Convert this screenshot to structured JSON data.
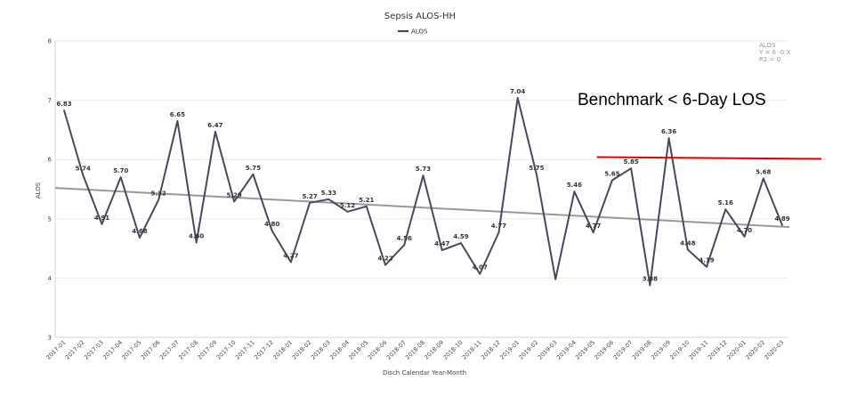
{
  "chart_data": {
    "type": "line",
    "title": "Sepsis ALOS-HH",
    "xlabel": "Disch Calendar Year-Month",
    "ylabel": "ALOS",
    "ylim": [
      3,
      8
    ],
    "yticks": [
      "3",
      "4",
      "5",
      "6",
      "7",
      "8"
    ],
    "grid": true,
    "legend": {
      "placement": "top-center",
      "entries": [
        "ALOS"
      ]
    },
    "categories": [
      "2017-01",
      "2017-02",
      "2017-03",
      "2017-04",
      "2017-05",
      "2017-06",
      "2017-07",
      "2017-08",
      "2017-09",
      "2017-10",
      "2017-11",
      "2017-12",
      "2018-01",
      "2018-02",
      "2018-03",
      "2018-04",
      "2018-05",
      "2018-06",
      "2018-07",
      "2018-08",
      "2018-09",
      "2018-10",
      "2018-11",
      "2018-12",
      "2019-01",
      "2019-02",
      "2019-03",
      "2019-04",
      "2019-05",
      "2019-06",
      "2019-07",
      "2019-08",
      "2019-09",
      "2019-10",
      "2019-11",
      "2019-12",
      "2020-01",
      "2020-02",
      "2020-03"
    ],
    "series": [
      {
        "name": "ALOS",
        "color": "#474a5c",
        "values": [
          6.83,
          5.74,
          4.91,
          5.7,
          4.68,
          5.32,
          6.65,
          4.6,
          6.47,
          5.29,
          5.75,
          4.8,
          4.27,
          5.27,
          5.33,
          5.12,
          5.21,
          4.22,
          4.56,
          5.73,
          4.47,
          4.59,
          4.07,
          4.77,
          7.04,
          5.75,
          3.98,
          5.46,
          4.77,
          5.65,
          5.85,
          3.88,
          6.36,
          4.48,
          4.19,
          5.16,
          4.7,
          5.68,
          4.89
        ],
        "labels": [
          "6.83",
          "5.74",
          "4.91",
          "5.70",
          "4.68",
          "5.32",
          "6.65",
          "4.60",
          "6.47",
          "5.29",
          "5.75",
          "4.80",
          "4.27",
          "5.27",
          "5.33",
          "5.12",
          "5.21",
          "4.22",
          "4.56",
          "5.73",
          "4.47",
          "4.59",
          "4.07",
          "4.77",
          "7.04",
          "5.75",
          "",
          "5.46",
          "4.77",
          "5.65",
          "5.85",
          "3.88",
          "6.36",
          "4.48",
          "4.19",
          "5.16",
          "4.70",
          "5.68",
          "4.89"
        ]
      }
    ],
    "trendline": {
      "color": "#999999",
      "start_value": 5.52,
      "end_value": 4.86,
      "info": [
        "ALOS",
        "Y = 6 -0 X",
        "R2 = 0"
      ]
    },
    "benchmark": {
      "text": "Benchmark < 6-Day LOS",
      "color": "#e00000",
      "start_category_index": 28,
      "start_value": 6.04,
      "end_value": 6.01
    }
  }
}
